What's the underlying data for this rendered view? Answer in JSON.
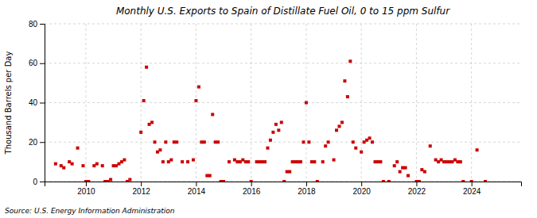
{
  "chart_data": {
    "type": "scatter",
    "title": "Monthly U.S. Exports to Spain of Distillate Fuel Oil, 0 to 15 ppm Sulfur",
    "ylabel": "Thousand Barrels per Day",
    "annotations": [
      "Source: U.S. Energy Information Administration"
    ],
    "color": "#cc0000",
    "marker": "square",
    "grid": true,
    "xlim": [
      2008.5,
      2025.8
    ],
    "xticks": [
      2010,
      2012,
      2014,
      2016,
      2018,
      2020,
      2022,
      2024
    ],
    "ylim": [
      0,
      80
    ],
    "yticks": [
      0,
      20,
      40,
      60,
      80
    ],
    "x": [
      2008.9,
      2009.1,
      2009.2,
      2009.4,
      2009.5,
      2009.7,
      2009.9,
      2010.0,
      2010.1,
      2010.3,
      2010.4,
      2010.6,
      2010.7,
      2010.8,
      2010.9,
      2011.0,
      2011.1,
      2011.2,
      2011.3,
      2011.4,
      2011.5,
      2011.6,
      2012.0,
      2012.1,
      2012.2,
      2012.3,
      2012.4,
      2012.5,
      2012.6,
      2012.7,
      2012.8,
      2012.9,
      2013.0,
      2013.1,
      2013.2,
      2013.3,
      2013.5,
      2013.7,
      2013.9,
      2014.0,
      2014.1,
      2014.2,
      2014.3,
      2014.4,
      2014.5,
      2014.6,
      2014.7,
      2014.8,
      2014.9,
      2015.0,
      2015.2,
      2015.4,
      2015.5,
      2015.6,
      2015.7,
      2015.8,
      2015.9,
      2016.0,
      2016.2,
      2016.3,
      2016.4,
      2016.5,
      2016.6,
      2016.7,
      2016.8,
      2016.9,
      2017.0,
      2017.1,
      2017.2,
      2017.3,
      2017.4,
      2017.5,
      2017.6,
      2017.7,
      2017.8,
      2017.9,
      2018.0,
      2018.1,
      2018.2,
      2018.3,
      2018.4,
      2018.6,
      2018.7,
      2018.8,
      2019.0,
      2019.1,
      2019.2,
      2019.3,
      2019.4,
      2019.5,
      2019.6,
      2019.7,
      2019.8,
      2020.0,
      2020.1,
      2020.2,
      2020.3,
      2020.4,
      2020.5,
      2020.6,
      2020.7,
      2020.8,
      2021.0,
      2021.2,
      2021.3,
      2021.4,
      2021.5,
      2021.6,
      2021.7,
      2022.0,
      2022.1,
      2022.2,
      2022.3,
      2022.5,
      2022.7,
      2022.8,
      2022.9,
      2023.0,
      2023.1,
      2023.2,
      2023.3,
      2023.4,
      2023.5,
      2023.6,
      2023.7,
      2024.0,
      2024.2,
      2024.5
    ],
    "values": [
      9,
      8,
      7,
      10,
      9,
      17,
      8,
      0,
      0,
      8,
      9,
      8,
      0,
      0,
      1,
      8,
      8,
      9,
      10,
      11,
      0,
      1,
      25,
      41,
      58,
      29,
      30,
      20,
      15,
      16,
      10,
      20,
      10,
      11,
      20,
      20,
      10,
      10,
      11,
      41,
      48,
      20,
      20,
      3,
      3,
      34,
      20,
      20,
      0,
      0,
      10,
      11,
      10,
      10,
      11,
      10,
      10,
      0,
      10,
      10,
      10,
      10,
      17,
      21,
      25,
      29,
      26,
      30,
      0,
      5,
      5,
      10,
      10,
      10,
      10,
      20,
      40,
      20,
      10,
      10,
      0,
      10,
      18,
      20,
      11,
      26,
      28,
      30,
      51,
      43,
      61,
      20,
      17,
      15,
      20,
      21,
      22,
      20,
      10,
      10,
      10,
      0,
      0,
      8,
      10,
      5,
      7,
      7,
      3,
      0,
      0,
      6,
      5,
      18,
      11,
      10,
      11,
      10,
      10,
      10,
      10,
      11,
      10,
      10,
      0,
      0,
      16,
      0
    ]
  }
}
